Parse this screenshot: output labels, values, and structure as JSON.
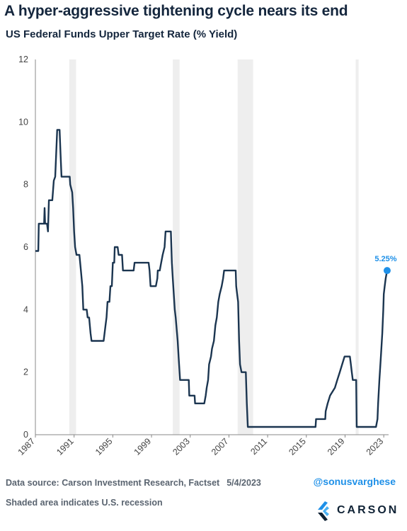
{
  "title": "A hyper-aggressive tightening cycle nears its end",
  "subtitle": "US Federal Funds Upper Target Rate (% Yield)",
  "footer": {
    "source": "Data source: Carson Investment Research, Factset",
    "date": "5/4/2023",
    "handle": "@sonusvarghese",
    "note": "Shaded area indicates U.S. recession",
    "logo_text": "CARSON"
  },
  "colors": {
    "line": "#1b3550",
    "marker": "#1e90e8",
    "recession": "#eeeeee",
    "axis": "#888888"
  },
  "chart_data": {
    "type": "line",
    "title": "US Federal Funds Upper Target Rate (% Yield)",
    "xlim": [
      1987,
      2023.5
    ],
    "ylim": [
      0,
      12
    ],
    "x_ticks": [
      1987,
      1991,
      1995,
      1999,
      2003,
      2007,
      2011,
      2015,
      2019,
      2023
    ],
    "y_ticks": [
      0,
      2,
      4,
      6,
      8,
      10,
      12
    ],
    "grid": false,
    "recessions": [
      [
        1990.5,
        1991.2
      ],
      [
        2001.2,
        2001.9
      ],
      [
        2007.9,
        2009.5
      ],
      [
        2020.1,
        2020.4
      ]
    ],
    "annotation": {
      "x": 2023.35,
      "y": 5.25,
      "label": "5.25%"
    },
    "series": [
      {
        "points": [
          [
            1987.0,
            5.875
          ],
          [
            1987.3,
            5.875
          ],
          [
            1987.35,
            6.75
          ],
          [
            1987.9,
            6.75
          ],
          [
            1987.95,
            7.25
          ],
          [
            1988.0,
            6.75
          ],
          [
            1988.2,
            6.75
          ],
          [
            1988.3,
            6.5
          ],
          [
            1988.4,
            7.5
          ],
          [
            1988.75,
            7.5
          ],
          [
            1988.9,
            8.125
          ],
          [
            1989.05,
            8.25
          ],
          [
            1989.15,
            9.0
          ],
          [
            1989.25,
            9.75
          ],
          [
            1989.5,
            9.75
          ],
          [
            1989.6,
            9.0
          ],
          [
            1989.7,
            8.25
          ],
          [
            1990.55,
            8.25
          ],
          [
            1990.6,
            8.0
          ],
          [
            1990.8,
            7.75
          ],
          [
            1990.9,
            7.25
          ],
          [
            1991.0,
            6.5
          ],
          [
            1991.1,
            6.0
          ],
          [
            1991.25,
            5.75
          ],
          [
            1991.55,
            5.75
          ],
          [
            1991.7,
            5.25
          ],
          [
            1991.85,
            4.75
          ],
          [
            1991.95,
            4.0
          ],
          [
            1992.3,
            4.0
          ],
          [
            1992.4,
            3.75
          ],
          [
            1992.55,
            3.75
          ],
          [
            1992.7,
            3.25
          ],
          [
            1992.8,
            3.0
          ],
          [
            1994.05,
            3.0
          ],
          [
            1994.25,
            3.5
          ],
          [
            1994.35,
            3.75
          ],
          [
            1994.45,
            4.25
          ],
          [
            1994.65,
            4.25
          ],
          [
            1994.75,
            4.75
          ],
          [
            1994.9,
            4.75
          ],
          [
            1995.0,
            5.5
          ],
          [
            1995.15,
            5.5
          ],
          [
            1995.2,
            6.0
          ],
          [
            1995.5,
            6.0
          ],
          [
            1995.6,
            5.75
          ],
          [
            1995.95,
            5.75
          ],
          [
            1996.05,
            5.25
          ],
          [
            1997.15,
            5.25
          ],
          [
            1997.25,
            5.5
          ],
          [
            1998.7,
            5.5
          ],
          [
            1998.8,
            5.25
          ],
          [
            1998.9,
            4.75
          ],
          [
            1999.45,
            4.75
          ],
          [
            1999.6,
            5.0
          ],
          [
            1999.65,
            5.25
          ],
          [
            1999.85,
            5.25
          ],
          [
            2000.0,
            5.5
          ],
          [
            2000.15,
            5.75
          ],
          [
            2000.35,
            6.0
          ],
          [
            2000.45,
            6.5
          ],
          [
            2001.0,
            6.5
          ],
          [
            2001.05,
            6.0
          ],
          [
            2001.1,
            5.5
          ],
          [
            2001.2,
            5.0
          ],
          [
            2001.3,
            4.5
          ],
          [
            2001.4,
            4.0
          ],
          [
            2001.5,
            3.75
          ],
          [
            2001.7,
            3.0
          ],
          [
            2001.8,
            2.5
          ],
          [
            2001.9,
            2.0
          ],
          [
            2001.95,
            1.75
          ],
          [
            2002.85,
            1.75
          ],
          [
            2002.9,
            1.25
          ],
          [
            2003.45,
            1.25
          ],
          [
            2003.5,
            1.0
          ],
          [
            2004.45,
            1.0
          ],
          [
            2004.6,
            1.25
          ],
          [
            2004.7,
            1.5
          ],
          [
            2004.85,
            1.75
          ],
          [
            2004.95,
            2.25
          ],
          [
            2005.15,
            2.5
          ],
          [
            2005.25,
            2.75
          ],
          [
            2005.45,
            3.0
          ],
          [
            2005.6,
            3.5
          ],
          [
            2005.75,
            3.75
          ],
          [
            2005.9,
            4.25
          ],
          [
            2006.05,
            4.5
          ],
          [
            2006.25,
            4.75
          ],
          [
            2006.4,
            5.0
          ],
          [
            2006.5,
            5.25
          ],
          [
            2007.7,
            5.25
          ],
          [
            2007.75,
            4.75
          ],
          [
            2007.85,
            4.5
          ],
          [
            2007.95,
            4.25
          ],
          [
            2008.05,
            3.0
          ],
          [
            2008.15,
            2.25
          ],
          [
            2008.3,
            2.0
          ],
          [
            2008.75,
            2.0
          ],
          [
            2008.8,
            1.5
          ],
          [
            2008.85,
            1.0
          ],
          [
            2008.95,
            0.25
          ],
          [
            2015.95,
            0.25
          ],
          [
            2016.0,
            0.5
          ],
          [
            2016.95,
            0.5
          ],
          [
            2017.0,
            0.75
          ],
          [
            2017.2,
            1.0
          ],
          [
            2017.45,
            1.25
          ],
          [
            2017.95,
            1.5
          ],
          [
            2018.2,
            1.75
          ],
          [
            2018.45,
            2.0
          ],
          [
            2018.7,
            2.25
          ],
          [
            2018.95,
            2.5
          ],
          [
            2019.5,
            2.5
          ],
          [
            2019.6,
            2.25
          ],
          [
            2019.7,
            2.0
          ],
          [
            2019.8,
            1.75
          ],
          [
            2020.15,
            1.75
          ],
          [
            2020.2,
            0.25
          ],
          [
            2022.2,
            0.25
          ],
          [
            2022.35,
            0.5
          ],
          [
            2022.42,
            1.0
          ],
          [
            2022.55,
            1.75
          ],
          [
            2022.7,
            2.5
          ],
          [
            2022.85,
            3.25
          ],
          [
            2022.95,
            4.0
          ],
          [
            2023.0,
            4.5
          ],
          [
            2023.1,
            4.75
          ],
          [
            2023.2,
            5.0
          ],
          [
            2023.35,
            5.25
          ]
        ]
      }
    ]
  }
}
